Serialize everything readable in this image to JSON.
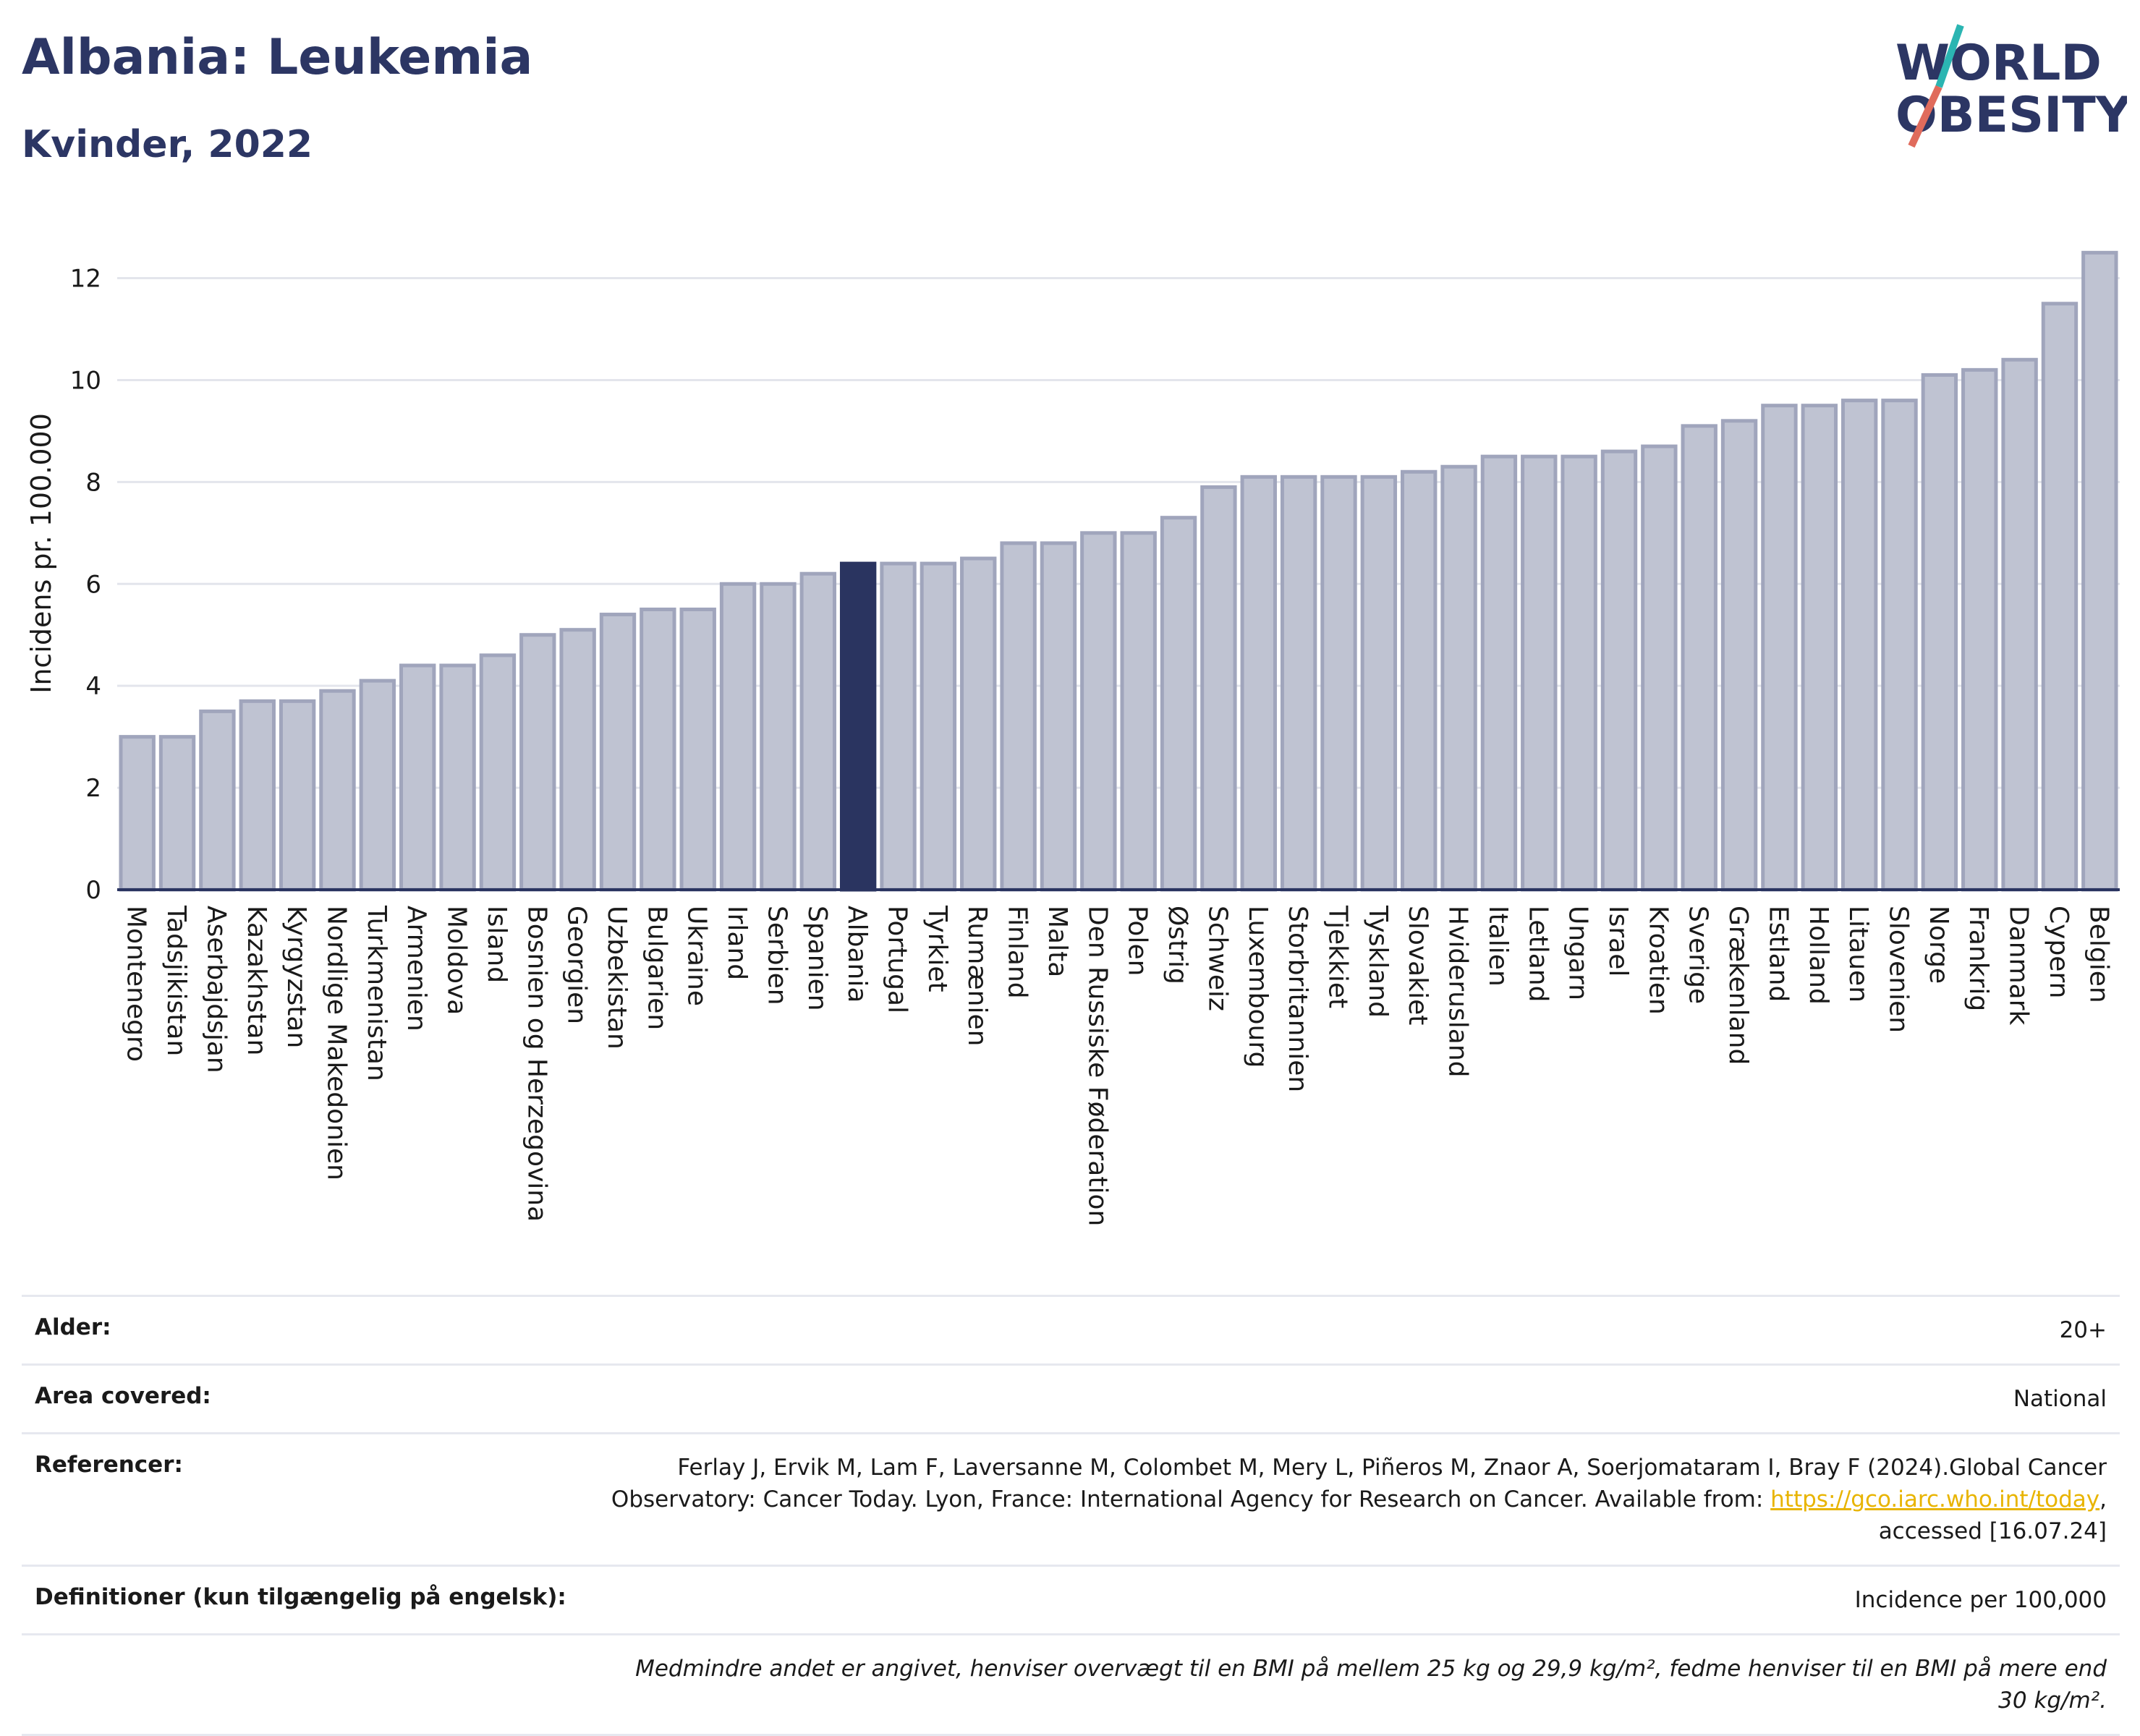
{
  "header": {
    "title": "Albania: Leukemia",
    "subtitle": "Kvinder, 2022"
  },
  "logo": {
    "line1": "WORLD",
    "line2": "OBESITY",
    "slash_color_top": "#2bb5b2",
    "slash_color_bottom": "#e06b5c"
  },
  "chart_data": {
    "type": "bar",
    "ylabel": "Incidens pr. 100.000",
    "ylim": [
      0,
      13.2
    ],
    "yticks": [
      0,
      2,
      4,
      6,
      8,
      10,
      12
    ],
    "grid": true,
    "highlight": "Albania",
    "colors": {
      "bar": "#bfc3d2",
      "bar_edge": "#a0a5bc",
      "highlight": "#2a3460"
    },
    "categories": [
      "Montenegro",
      "Tadsjikistan",
      "Aserbajdsjan",
      "Kazakhstan",
      "Kyrgyzstan",
      "Nordlige Makedonien",
      "Turkmenistan",
      "Armenien",
      "Moldova",
      "Island",
      "Bosnien og Herzegovina",
      "Georgien",
      "Uzbekistan",
      "Bulgarien",
      "Ukraine",
      "Irland",
      "Serbien",
      "Spanien",
      "Albania",
      "Portugal",
      "Tyrkiet",
      "Rumænien",
      "Finland",
      "Malta",
      "Den Russiske Føderation",
      "Polen",
      "Østrig",
      "Schweiz",
      "Luxembourg",
      "Storbritannien",
      "Tjekkiet",
      "Tyskland",
      "Slovakiet",
      "Hviderusland",
      "Italien",
      "Letland",
      "Ungarn",
      "Israel",
      "Kroatien",
      "Sverige",
      "Grækenland",
      "Estland",
      "Holland",
      "Litauen",
      "Slovenien",
      "Norge",
      "Frankrig",
      "Danmark",
      "Cypern",
      "Belgien"
    ],
    "values": [
      3.0,
      3.0,
      3.5,
      3.7,
      3.7,
      3.9,
      4.1,
      4.4,
      4.4,
      4.6,
      5.0,
      5.1,
      5.4,
      5.5,
      5.5,
      6.0,
      6.0,
      6.2,
      6.4,
      6.4,
      6.4,
      6.5,
      6.8,
      6.8,
      7.0,
      7.0,
      7.3,
      7.9,
      8.1,
      8.1,
      8.1,
      8.1,
      8.2,
      8.3,
      8.5,
      8.5,
      8.5,
      8.6,
      8.7,
      9.1,
      9.2,
      9.5,
      9.5,
      9.6,
      9.6,
      10.1,
      10.2,
      10.4,
      11.5,
      12.5
    ]
  },
  "meta": {
    "age_label": "Alder:",
    "age_value": "20+",
    "area_label": "Area covered:",
    "area_value": "National",
    "ref_label": "Referencer:",
    "ref_text_1": "Ferlay J, Ervik M, Lam F, Laversanne M, Colombet M, Mery L, Piñeros M, Znaor A, Soerjomataram I, Bray F (2024).Global Cancer Observatory: Cancer Today. Lyon, France: International Agency for Research on Cancer. Available from: ",
    "ref_link": "https://gco.iarc.who.int/today",
    "ref_text_2": ", accessed [16.07.24]",
    "def_label": "Definitioner (kun tilgængelig på engelsk):",
    "def_value": "Incidence per 100,000",
    "note": "Medmindre andet er angivet, henviser overvægt til en BMI på mellem 25 kg og 29,9 kg/m², fedme henviser til en BMI på mere end 30 kg/m²."
  }
}
